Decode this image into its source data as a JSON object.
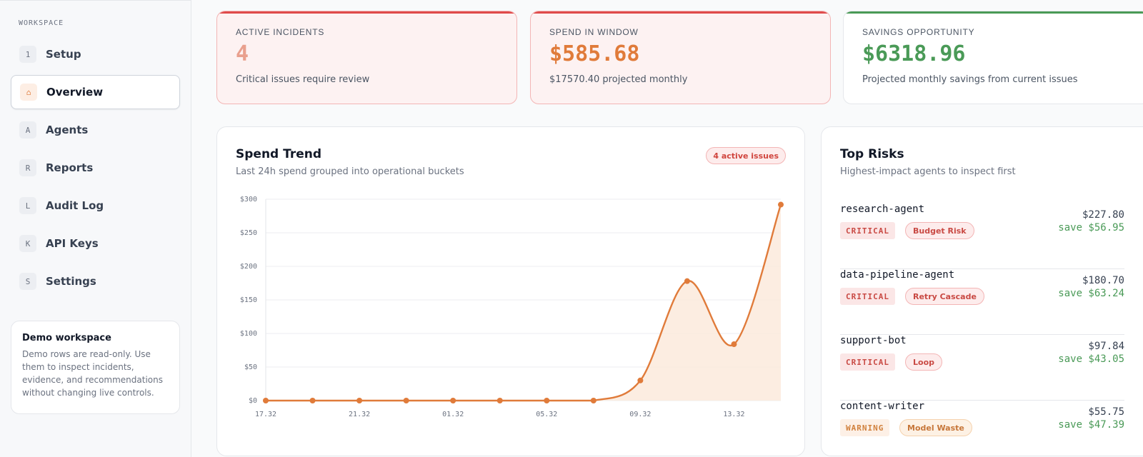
{
  "sidebar": {
    "section_label": "WORKSPACE",
    "items": [
      {
        "badge": "1",
        "label": "Setup",
        "active": false
      },
      {
        "badge": "⌂",
        "label": "Overview",
        "active": true
      },
      {
        "badge": "A",
        "label": "Agents",
        "active": false
      },
      {
        "badge": "R",
        "label": "Reports",
        "active": false
      },
      {
        "badge": "L",
        "label": "Audit Log",
        "active": false
      },
      {
        "badge": "K",
        "label": "API Keys",
        "active": false
      },
      {
        "badge": "S",
        "label": "Settings",
        "active": false
      }
    ],
    "demo": {
      "title": "Demo workspace",
      "text": "Demo rows are read-only. Use them to inspect incidents, evidence, and recommendations without changing live controls."
    }
  },
  "stats": [
    {
      "label": "ACTIVE INCIDENTS",
      "value": "4",
      "sub": "Critical issues require review",
      "value_color": "#e9a08e"
    },
    {
      "label": "SPEND IN WINDOW",
      "value": "$585.68",
      "sub": "$17570.40 projected monthly",
      "value_color": "#e07b3a"
    },
    {
      "label": "SAVINGS OPPORTUNITY",
      "value": "$6318.96",
      "sub": "Projected monthly savings from current issues",
      "value_color": "#4a9a57"
    }
  ],
  "spend_trend": {
    "title": "Spend Trend",
    "subtitle": "Last 24h spend grouped into operational buckets",
    "pill": "4 active issues"
  },
  "chart_data": {
    "type": "area",
    "x": [
      "17.32",
      "19.32",
      "21.32",
      "23.32",
      "01.32",
      "03.32",
      "05.32",
      "07.32",
      "09.32",
      "11.32",
      "13.32",
      "15.32"
    ],
    "x_tick_labels": [
      "17.32",
      "21.32",
      "01.32",
      "05.32",
      "09.32",
      "13.32"
    ],
    "values": [
      0,
      0,
      0,
      0,
      0,
      0,
      0,
      0,
      30,
      178,
      84,
      292
    ],
    "ylim": [
      0,
      300
    ],
    "y_ticks": [
      0,
      50,
      100,
      150,
      200,
      250,
      300
    ],
    "y_tick_labels": [
      "$0",
      "$50",
      "$100",
      "$150",
      "$200",
      "$250",
      "$300"
    ],
    "grid": true,
    "color": "#e07b3a",
    "fill_color": "#fbeadc"
  },
  "top_risks": {
    "title": "Top Risks",
    "subtitle": "Highest-impact agents to inspect first",
    "rows": [
      {
        "name": "research-agent",
        "severity": "CRITICAL",
        "kind": "Budget Risk",
        "cost": "$227.80",
        "save": "save $56.95",
        "level": "critical"
      },
      {
        "name": "data-pipeline-agent",
        "severity": "CRITICAL",
        "kind": "Retry Cascade",
        "cost": "$180.70",
        "save": "save $63.24",
        "level": "critical"
      },
      {
        "name": "support-bot",
        "severity": "CRITICAL",
        "kind": "Loop",
        "cost": "$97.84",
        "save": "save $43.05",
        "level": "critical"
      },
      {
        "name": "content-writer",
        "severity": "WARNING",
        "kind": "Model Waste",
        "cost": "$55.75",
        "save": "save $47.39",
        "level": "warning"
      }
    ]
  }
}
